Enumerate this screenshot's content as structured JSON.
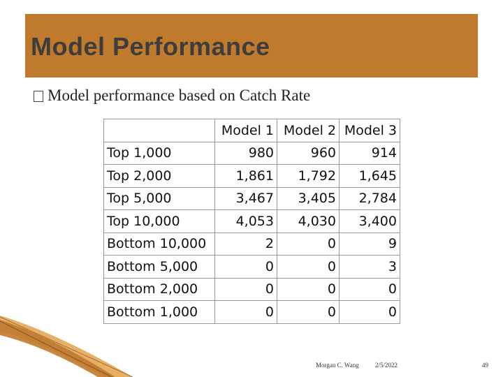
{
  "slide": {
    "title": "Model Performance",
    "bullet": "Model performance based on Catch Rate"
  },
  "table": {
    "headers": [
      "",
      "Model 1",
      "Model 2",
      "Model 3"
    ],
    "rows": [
      {
        "label": "Top 1,000",
        "values": [
          "980",
          "960",
          "914"
        ]
      },
      {
        "label": "Top 2,000",
        "values": [
          "1,861",
          "1,792",
          "1,645"
        ]
      },
      {
        "label": "Top 5,000",
        "values": [
          "3,467",
          "3,405",
          "2,784"
        ]
      },
      {
        "label": "Top 10,000",
        "values": [
          "4,053",
          "4,030",
          "3,400"
        ]
      },
      {
        "label": "Bottom 10,000",
        "values": [
          "2",
          "0",
          "9"
        ]
      },
      {
        "label": "Bottom 5,000",
        "values": [
          "0",
          "0",
          "3"
        ]
      },
      {
        "label": "Bottom 2,000",
        "values": [
          "0",
          "0",
          "0"
        ]
      },
      {
        "label": "Bottom 1,000",
        "values": [
          "0",
          "0",
          "0"
        ]
      }
    ]
  },
  "footer": {
    "author": "Morgan C. Wang",
    "date": "2/5/2022",
    "page": "49"
  },
  "colors": {
    "title_bar": "#c07a2c",
    "title_text": "#3d3d3d",
    "swoosh": "#d98a2a"
  }
}
